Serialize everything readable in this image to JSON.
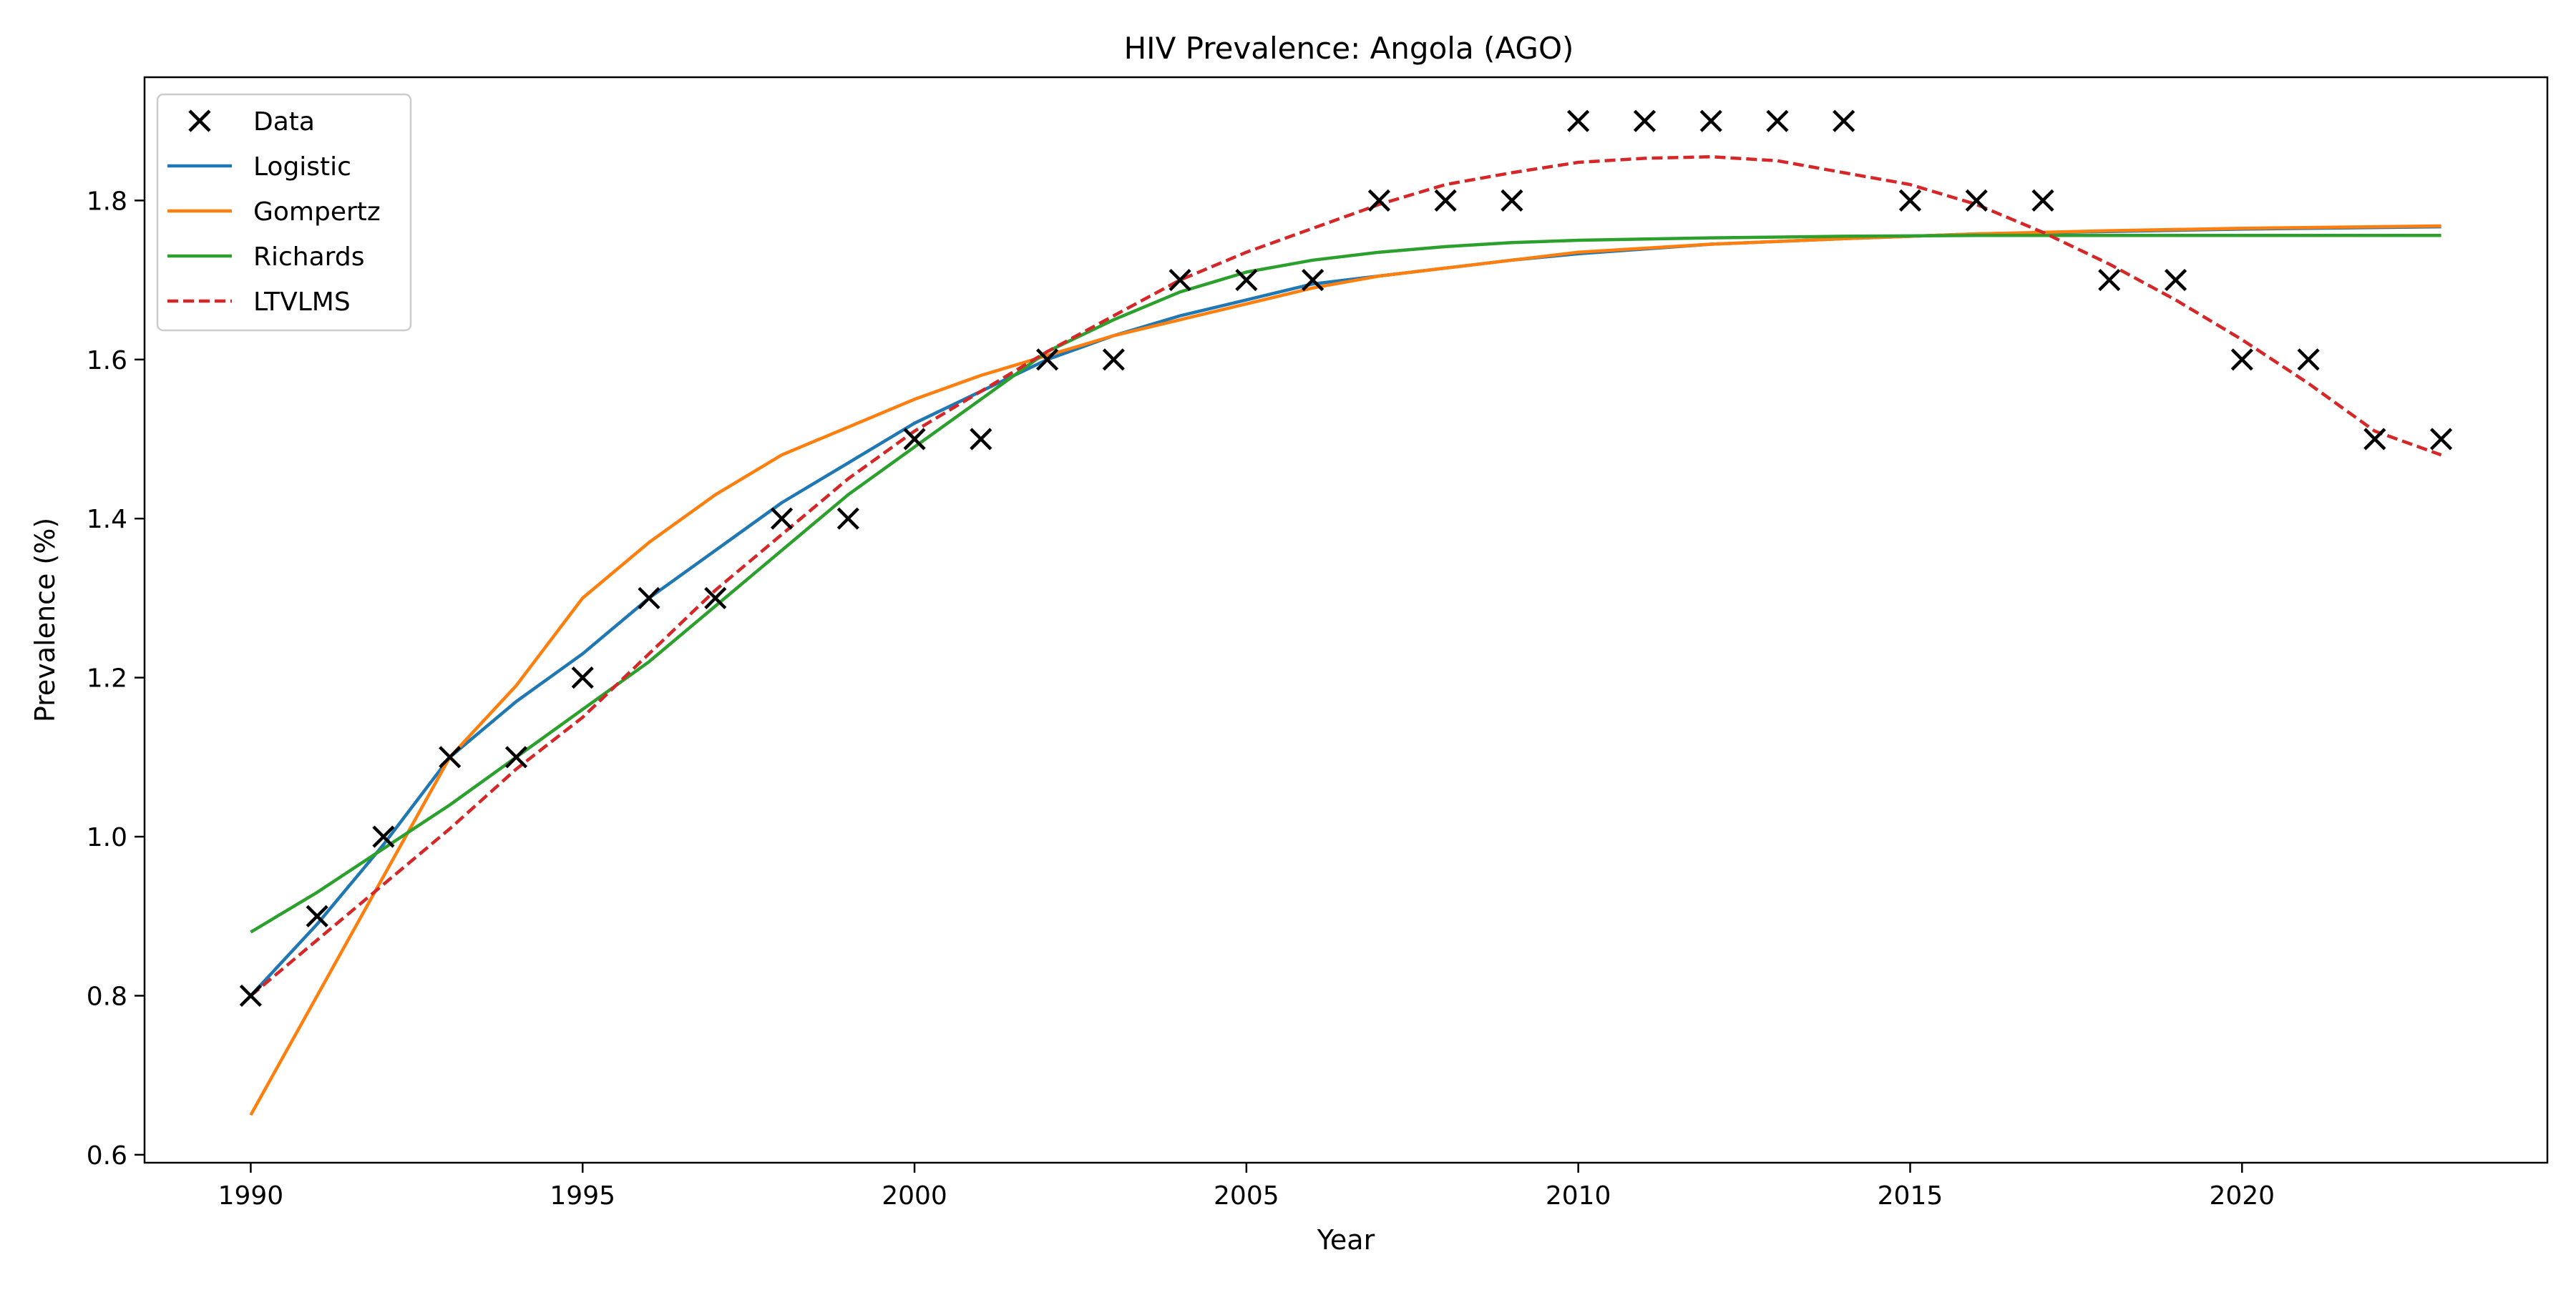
{
  "chart_data": {
    "type": "line",
    "title": "HIV Prevalence: Angola (AGO)",
    "xlabel": "Year",
    "ylabel": "Prevalence (%)",
    "xlim": [
      1988.4,
      2024.6
    ],
    "ylim": [
      0.59,
      1.955
    ],
    "x_ticks": [
      1990,
      1995,
      2000,
      2005,
      2010,
      2015,
      2020
    ],
    "y_ticks": [
      0.6,
      0.8,
      1.0,
      1.2,
      1.4,
      1.6,
      1.8
    ],
    "x_tick_labels": [
      "1990",
      "1995",
      "2000",
      "2005",
      "2010",
      "2015",
      "2020"
    ],
    "y_tick_labels": [
      "0.6",
      "0.8",
      "1.0",
      "1.2",
      "1.4",
      "1.6",
      "1.8"
    ],
    "grid": false,
    "legend_position": "top-left",
    "data_points": {
      "name": "Data",
      "marker": "x",
      "color": "#000000",
      "x": [
        1990,
        1991,
        1992,
        1993,
        1994,
        1995,
        1996,
        1997,
        1998,
        1999,
        2000,
        2001,
        2002,
        2003,
        2004,
        2005,
        2006,
        2007,
        2008,
        2009,
        2010,
        2011,
        2012,
        2013,
        2014,
        2015,
        2016,
        2017,
        2018,
        2019,
        2020,
        2021,
        2022,
        2023
      ],
      "y": [
        0.8,
        0.9,
        1.0,
        1.1,
        1.1,
        1.2,
        1.3,
        1.3,
        1.4,
        1.4,
        1.5,
        1.5,
        1.6,
        1.6,
        1.7,
        1.7,
        1.7,
        1.8,
        1.8,
        1.8,
        1.9,
        1.9,
        1.9,
        1.9,
        1.9,
        1.8,
        1.8,
        1.8,
        1.7,
        1.7,
        1.6,
        1.6,
        1.5,
        1.5
      ]
    },
    "series": [
      {
        "name": "Logistic",
        "color": "#1f77b4",
        "dash": "solid",
        "x": [
          1990,
          1991,
          1992,
          1993,
          1994,
          1995,
          1996,
          1997,
          1998,
          1999,
          2000,
          2001,
          2002,
          2003,
          2004,
          2005,
          2006,
          2007,
          2008,
          2009,
          2010,
          2012,
          2014,
          2016,
          2018,
          2020,
          2023
        ],
        "y": [
          0.8,
          0.89,
          0.99,
          1.1,
          1.17,
          1.23,
          1.3,
          1.36,
          1.42,
          1.47,
          1.52,
          1.56,
          1.6,
          1.63,
          1.655,
          1.675,
          1.695,
          1.705,
          1.715,
          1.725,
          1.733,
          1.745,
          1.752,
          1.758,
          1.761,
          1.764,
          1.767
        ]
      },
      {
        "name": "Gompertz",
        "color": "#ff7f0e",
        "dash": "solid",
        "x": [
          1990,
          1991,
          1992,
          1993,
          1994,
          1995,
          1996,
          1997,
          1998,
          1999,
          2000,
          2001,
          2002,
          2003,
          2004,
          2005,
          2006,
          2007,
          2008,
          2009,
          2010,
          2012,
          2014,
          2016,
          2018,
          2020,
          2023
        ],
        "y": [
          0.65,
          0.8,
          0.95,
          1.1,
          1.19,
          1.3,
          1.37,
          1.43,
          1.48,
          1.515,
          1.55,
          1.58,
          1.605,
          1.63,
          1.65,
          1.67,
          1.69,
          1.705,
          1.715,
          1.725,
          1.735,
          1.745,
          1.752,
          1.758,
          1.762,
          1.765,
          1.768
        ]
      },
      {
        "name": "Richards",
        "color": "#2ca02c",
        "dash": "solid",
        "x": [
          1990,
          1991,
          1992,
          1993,
          1994,
          1995,
          1996,
          1997,
          1998,
          1999,
          2000,
          2001,
          2002,
          2003,
          2004,
          2005,
          2006,
          2007,
          2008,
          2009,
          2010,
          2012,
          2014,
          2016,
          2018,
          2020,
          2023
        ],
        "y": [
          0.88,
          0.93,
          0.985,
          1.04,
          1.1,
          1.16,
          1.22,
          1.29,
          1.36,
          1.43,
          1.49,
          1.55,
          1.61,
          1.65,
          1.685,
          1.71,
          1.725,
          1.735,
          1.742,
          1.747,
          1.75,
          1.753,
          1.755,
          1.756,
          1.756,
          1.756,
          1.756
        ]
      },
      {
        "name": "LTVLMS",
        "color": "#d62728",
        "dash": "dashed",
        "x": [
          1990,
          1991,
          1992,
          1993,
          1994,
          1995,
          1996,
          1997,
          1998,
          1999,
          2000,
          2001,
          2002,
          2003,
          2004,
          2005,
          2006,
          2007,
          2008,
          2009,
          2010,
          2011,
          2012,
          2013,
          2014,
          2015,
          2016,
          2017,
          2018,
          2019,
          2020,
          2021,
          2022,
          2023
        ],
        "y": [
          0.8,
          0.87,
          0.94,
          1.01,
          1.085,
          1.15,
          1.23,
          1.31,
          1.38,
          1.45,
          1.51,
          1.56,
          1.61,
          1.655,
          1.7,
          1.735,
          1.765,
          1.795,
          1.82,
          1.835,
          1.848,
          1.853,
          1.855,
          1.85,
          1.835,
          1.82,
          1.795,
          1.76,
          1.72,
          1.675,
          1.625,
          1.57,
          1.51,
          1.48
        ]
      }
    ]
  }
}
